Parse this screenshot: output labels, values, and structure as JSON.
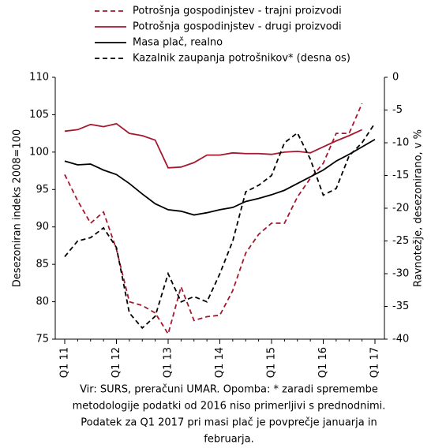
{
  "chart_data": {
    "type": "line",
    "y_label": "Desezoniran indeks 2008=100",
    "y2_label": "Ravnotežje, desezonirano, v %",
    "categories": [
      "Q1 11",
      null,
      null,
      null,
      "Q1 12",
      null,
      null,
      null,
      "Q1 13",
      null,
      null,
      null,
      "Q1 14",
      null,
      null,
      null,
      "Q1 15",
      null,
      null,
      null,
      "Q1 16",
      null,
      null,
      null,
      "Q1 17"
    ],
    "ylim": [
      75,
      110
    ],
    "yticks": [
      75,
      80,
      85,
      90,
      95,
      100,
      105,
      110
    ],
    "y2lim": [
      -40,
      0
    ],
    "y2ticks": [
      -40,
      -35,
      -30,
      -25,
      -20,
      -15,
      -10,
      -5,
      0
    ],
    "series": [
      {
        "name": "Potrošnja gospodinjstev - trajni proizvodi",
        "color": "#a5182f",
        "dashed": true,
        "values": [
          97,
          93.5,
          90.5,
          92,
          87,
          80,
          79.5,
          78.5,
          75.7,
          82,
          77.5,
          78,
          78.2,
          81.5,
          86.5,
          89,
          90.5,
          90.5,
          94,
          96.5,
          98.5,
          102.5,
          102.5,
          106.5,
          null
        ]
      },
      {
        "name": "Potrošnja gospodinjstev - drugi proizvodi",
        "color": "#a5182f",
        "dashed": false,
        "values": [
          102.8,
          103,
          103.7,
          103.4,
          103.8,
          102.5,
          102.2,
          101.6,
          97.9,
          98,
          98.6,
          99.6,
          99.6,
          99.9,
          99.8,
          99.8,
          99.7,
          100,
          100.1,
          99.9,
          100.7,
          101.5,
          102.2,
          103,
          null
        ]
      },
      {
        "name": "Masa plač, realno",
        "color": "#000000",
        "dashed": false,
        "values": [
          98.8,
          98.3,
          98.4,
          97.6,
          97,
          95.8,
          94.4,
          93.1,
          92.3,
          92.1,
          91.6,
          91.9,
          92.3,
          92.6,
          93.4,
          93.8,
          94.3,
          94.9,
          95.8,
          96.7,
          97.6,
          98.8,
          99.7,
          100.7,
          101.7
        ]
      },
      {
        "name": "Kazalnik zaupanja potrošnikov* (desna os)",
        "color": "#000000",
        "dashed": true,
        "axis": "y2",
        "values": [
          -27.4,
          -25,
          -24.5,
          -23,
          -26,
          -36,
          -38.3,
          -36.5,
          -30,
          -34.3,
          -33.5,
          -34.3,
          -30,
          -25,
          -17.5,
          -16.5,
          -15,
          -10,
          -8.5,
          -12.5,
          -18,
          -17,
          -12,
          -10,
          -7
        ]
      }
    ],
    "note": [
      "Vir: SURS, preračuni UMAR. Opomba: * zaradi spremembe",
      "metodologije podatki od 2016 niso primerljivi s prednodnimi.",
      "Podatek za Q1 2017 pri masi plač je povprečje januarja in",
      "februarja."
    ]
  }
}
